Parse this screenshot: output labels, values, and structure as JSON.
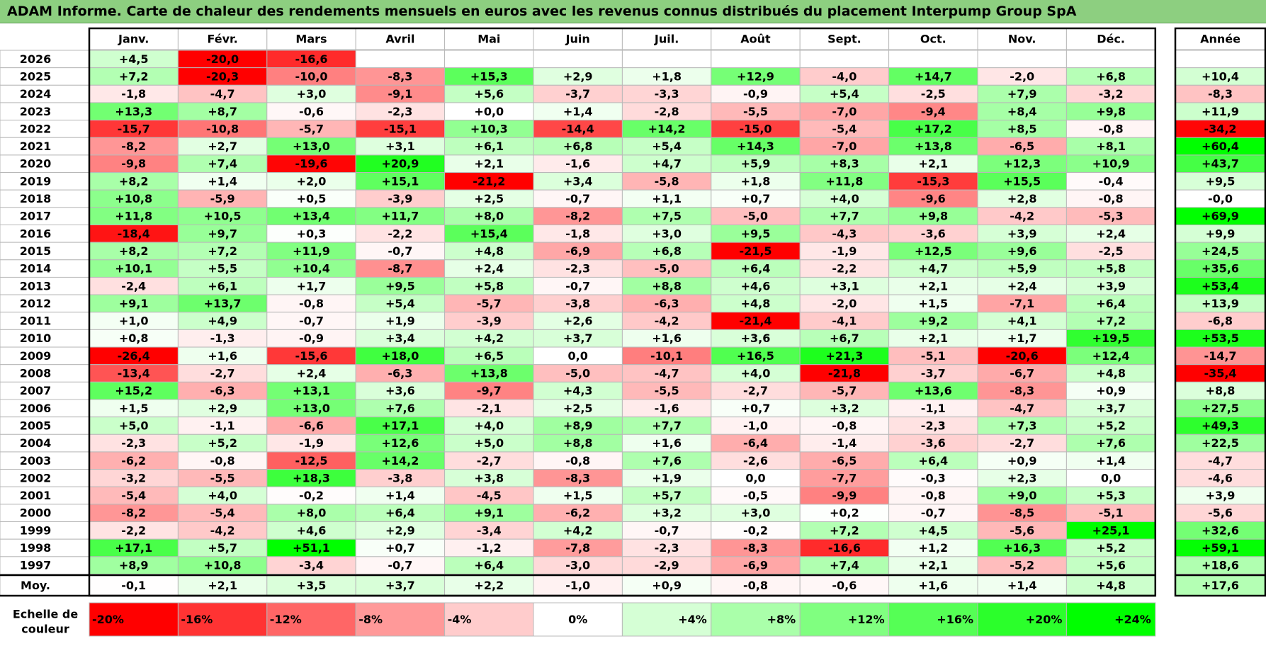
{
  "title": "ADAM Informe. Carte de chaleur des rendements mensuels en euros avec les revenus connus distribués du placement Interpump Group SpA",
  "chart_data": {
    "type": "heatmap",
    "columns": [
      "Janv.",
      "Févr.",
      "Mars",
      "Avril",
      "Mai",
      "Juin",
      "Juil.",
      "Août",
      "Sept.",
      "Oct.",
      "Nov.",
      "Déc."
    ],
    "annual_header": "Année",
    "rows": [
      {
        "label": "2026",
        "values": [
          "+4,5",
          "-20,0",
          "-16,6",
          null,
          null,
          null,
          null,
          null,
          null,
          null,
          null,
          null
        ],
        "annual": null
      },
      {
        "label": "2025",
        "values": [
          "+7,2",
          "-20,3",
          "-10,0",
          "-8,3",
          "+15,3",
          "+2,9",
          "+1,8",
          "+12,9",
          "-4,0",
          "+14,7",
          "-2,0",
          "+6,8"
        ],
        "annual": "+10,4"
      },
      {
        "label": "2024",
        "values": [
          "-1,8",
          "-4,7",
          "+3,0",
          "-9,1",
          "+5,6",
          "-3,7",
          "-3,3",
          "-0,9",
          "+5,4",
          "-2,5",
          "+7,9",
          "-3,2"
        ],
        "annual": "-8,3"
      },
      {
        "label": "2023",
        "values": [
          "+13,3",
          "+8,7",
          "-0,6",
          "-2,3",
          "+0,0",
          "+1,4",
          "-2,8",
          "-5,5",
          "-7,0",
          "-9,4",
          "+8,4",
          "+9,8"
        ],
        "annual": "+11,9"
      },
      {
        "label": "2022",
        "values": [
          "-15,7",
          "-10,8",
          "-5,7",
          "-15,1",
          "+10,3",
          "-14,4",
          "+14,2",
          "-15,0",
          "-5,4",
          "+17,2",
          "+8,5",
          "-0,8"
        ],
        "annual": "-34,2"
      },
      {
        "label": "2021",
        "values": [
          "-8,2",
          "+2,7",
          "+13,0",
          "+3,1",
          "+6,1",
          "+6,8",
          "+5,4",
          "+14,3",
          "-7,0",
          "+13,8",
          "-6,5",
          "+8,1"
        ],
        "annual": "+60,4"
      },
      {
        "label": "2020",
        "values": [
          "-9,8",
          "+7,4",
          "-19,6",
          "+20,9",
          "+2,1",
          "-1,6",
          "+4,7",
          "+5,9",
          "+8,3",
          "+2,1",
          "+12,3",
          "+10,9"
        ],
        "annual": "+43,7"
      },
      {
        "label": "2019",
        "values": [
          "+8,2",
          "+1,4",
          "+2,0",
          "+15,1",
          "-21,2",
          "+3,4",
          "-5,8",
          "+1,8",
          "+11,8",
          "-15,3",
          "+15,5",
          "-0,4"
        ],
        "annual": "+9,5"
      },
      {
        "label": "2018",
        "values": [
          "+10,8",
          "-5,9",
          "+0,5",
          "-3,9",
          "+2,5",
          "-0,7",
          "+1,1",
          "+0,7",
          "+4,0",
          "-9,6",
          "+2,8",
          "-0,8"
        ],
        "annual": "-0,0"
      },
      {
        "label": "2017",
        "values": [
          "+11,8",
          "+10,5",
          "+13,4",
          "+11,7",
          "+8,0",
          "-8,2",
          "+7,5",
          "-5,0",
          "+7,7",
          "+9,8",
          "-4,2",
          "-5,3"
        ],
        "annual": "+69,9"
      },
      {
        "label": "2016",
        "values": [
          "-18,4",
          "+9,7",
          "+0,3",
          "-2,2",
          "+15,4",
          "-1,8",
          "+3,0",
          "+9,5",
          "-4,3",
          "-3,6",
          "+3,9",
          "+2,4"
        ],
        "annual": "+9,9"
      },
      {
        "label": "2015",
        "values": [
          "+8,2",
          "+7,2",
          "+11,9",
          "-0,7",
          "+4,8",
          "-6,9",
          "+6,8",
          "-21,5",
          "-1,9",
          "+12,5",
          "+9,6",
          "-2,5"
        ],
        "annual": "+24,5"
      },
      {
        "label": "2014",
        "values": [
          "+10,1",
          "+5,5",
          "+10,4",
          "-8,7",
          "+2,4",
          "-2,3",
          "-5,0",
          "+6,4",
          "-2,2",
          "+4,7",
          "+5,9",
          "+5,8"
        ],
        "annual": "+35,6"
      },
      {
        "label": "2013",
        "values": [
          "-2,4",
          "+6,1",
          "+1,7",
          "+9,5",
          "+5,8",
          "-0,7",
          "+8,8",
          "+4,6",
          "+3,1",
          "+2,1",
          "+2,4",
          "+3,9"
        ],
        "annual": "+53,4"
      },
      {
        "label": "2012",
        "values": [
          "+9,1",
          "+13,7",
          "-0,8",
          "+5,4",
          "-5,7",
          "-3,8",
          "-6,3",
          "+4,8",
          "-2,0",
          "+1,5",
          "-7,1",
          "+6,4"
        ],
        "annual": "+13,9"
      },
      {
        "label": "2011",
        "values": [
          "+1,0",
          "+4,9",
          "-0,7",
          "+1,9",
          "-3,9",
          "+2,6",
          "-4,2",
          "-21,4",
          "-4,1",
          "+9,2",
          "+4,1",
          "+7,2"
        ],
        "annual": "-6,8"
      },
      {
        "label": "2010",
        "values": [
          "+0,8",
          "-1,3",
          "-0,9",
          "+3,4",
          "+4,2",
          "+3,7",
          "+1,6",
          "+3,6",
          "+6,7",
          "+2,1",
          "+1,7",
          "+19,5"
        ],
        "annual": "+53,5"
      },
      {
        "label": "2009",
        "values": [
          "-26,4",
          "+1,6",
          "-15,6",
          "+18,0",
          "+6,5",
          "0,0",
          "-10,1",
          "+16,5",
          "+21,3",
          "-5,1",
          "-20,6",
          "+12,4"
        ],
        "annual": "-14,7"
      },
      {
        "label": "2008",
        "values": [
          "-13,4",
          "-2,7",
          "+2,4",
          "-6,3",
          "+13,8",
          "-5,0",
          "-4,7",
          "+4,0",
          "-21,8",
          "-3,7",
          "-6,7",
          "+4,8"
        ],
        "annual": "-35,4"
      },
      {
        "label": "2007",
        "values": [
          "+15,2",
          "-6,3",
          "+13,1",
          "+3,6",
          "-9,7",
          "+4,3",
          "-5,5",
          "-2,7",
          "-5,7",
          "+13,6",
          "-8,3",
          "+0,9"
        ],
        "annual": "+8,8"
      },
      {
        "label": "2006",
        "values": [
          "+1,5",
          "+2,9",
          "+13,0",
          "+7,6",
          "-2,1",
          "+2,5",
          "-1,6",
          "+0,7",
          "+3,2",
          "-1,1",
          "-4,7",
          "+3,7"
        ],
        "annual": "+27,5"
      },
      {
        "label": "2005",
        "values": [
          "+5,0",
          "-1,1",
          "-6,6",
          "+17,1",
          "+4,0",
          "+8,9",
          "+7,7",
          "-1,0",
          "-0,8",
          "-2,3",
          "+7,3",
          "+5,2"
        ],
        "annual": "+49,3"
      },
      {
        "label": "2004",
        "values": [
          "-2,3",
          "+5,2",
          "-1,9",
          "+12,6",
          "+5,0",
          "+8,8",
          "+1,6",
          "-6,4",
          "-1,4",
          "-3,6",
          "-2,7",
          "+7,6"
        ],
        "annual": "+22,5"
      },
      {
        "label": "2003",
        "values": [
          "-6,2",
          "-0,8",
          "-12,5",
          "+14,2",
          "-2,7",
          "-0,8",
          "+7,6",
          "-2,6",
          "-6,5",
          "+6,4",
          "+0,9",
          "+1,4"
        ],
        "annual": "-4,7"
      },
      {
        "label": "2002",
        "values": [
          "-3,2",
          "-5,5",
          "+18,3",
          "-3,8",
          "+3,8",
          "-8,3",
          "+1,9",
          "0,0",
          "-7,7",
          "-0,3",
          "+2,3",
          "0,0"
        ],
        "annual": "-4,6"
      },
      {
        "label": "2001",
        "values": [
          "-5,4",
          "+4,0",
          "-0,2",
          "+1,4",
          "-4,5",
          "+1,5",
          "+5,7",
          "-0,5",
          "-9,9",
          "-0,8",
          "+9,0",
          "+5,3"
        ],
        "annual": "+3,9"
      },
      {
        "label": "2000",
        "values": [
          "-8,2",
          "-5,4",
          "+8,0",
          "+6,4",
          "+9,1",
          "-6,2",
          "+3,2",
          "+3,0",
          "+0,2",
          "-0,7",
          "-8,5",
          "-5,1"
        ],
        "annual": "-5,6"
      },
      {
        "label": "1999",
        "values": [
          "-2,2",
          "-4,2",
          "+4,6",
          "+2,9",
          "-3,4",
          "+4,2",
          "-0,7",
          "-0,2",
          "+7,2",
          "+4,5",
          "-5,6",
          "+25,1"
        ],
        "annual": "+32,6"
      },
      {
        "label": "1998",
        "values": [
          "+17,1",
          "+5,7",
          "+51,1",
          "+0,7",
          "-1,2",
          "-7,8",
          "-2,3",
          "-8,3",
          "-16,6",
          "+1,2",
          "+16,3",
          "+5,2"
        ],
        "annual": "+59,1"
      },
      {
        "label": "1997",
        "values": [
          "+8,9",
          "+10,8",
          "-3,4",
          "-0,7",
          "+6,4",
          "-3,0",
          "-2,9",
          "-6,9",
          "+7,4",
          "+2,1",
          "-5,2",
          "+5,6"
        ],
        "annual": "+18,6"
      }
    ],
    "average": {
      "label": "Moy.",
      "values": [
        "-0,1",
        "+2,1",
        "+3,5",
        "+3,7",
        "+2,2",
        "-1,0",
        "+0,9",
        "-0,8",
        "-0,6",
        "+1,6",
        "+1,4",
        "+4,8"
      ],
      "annual": "+17,6"
    },
    "scale": {
      "label_line1": "Echelle de",
      "label_line2": "couleur",
      "steps": [
        "-20%",
        "-16%",
        "-12%",
        "-8%",
        "-4%",
        "0%",
        "+4%",
        "+8%",
        "+12%",
        "+16%",
        "+20%",
        "+24%"
      ]
    },
    "colors": {
      "negative_max": "#ff0000",
      "neutral": "#ffffff",
      "positive_max": "#00ff00"
    }
  }
}
